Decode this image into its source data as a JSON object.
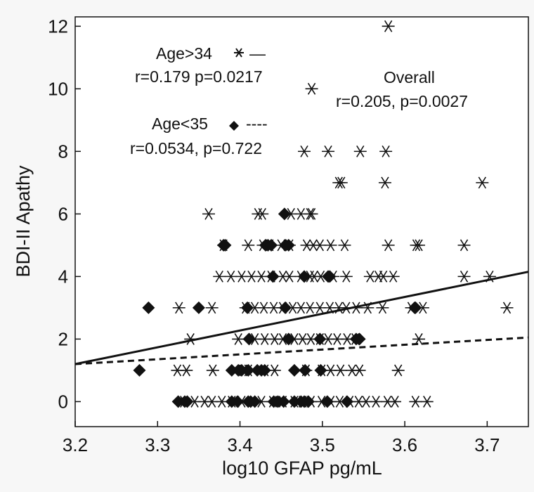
{
  "chart_data": {
    "type": "scatter",
    "title": "",
    "xlabel": "log10 GFAP pg/mL",
    "ylabel": "BDI-II Apathy",
    "xlim": [
      3.2,
      3.75
    ],
    "ylim": [
      -0.8,
      12.3
    ],
    "x_ticks": [
      3.2,
      3.3,
      3.4,
      3.5,
      3.6,
      3.7
    ],
    "x_tick_labels": [
      "3.2",
      "3.3",
      "3.4",
      "3.5",
      "3.6",
      "3.7"
    ],
    "y_ticks": [
      0,
      2,
      4,
      6,
      8,
      10,
      12
    ],
    "y_tick_labels": [
      "0",
      "2",
      "4",
      "6",
      "8",
      "10",
      "12"
    ],
    "grid": false,
    "annotations": {
      "older_group": "Age>34",
      "older_stats": "r=0.179 p=0.0217",
      "younger_group": "Age<35",
      "younger_stats": "r=0.0534, p=0.722",
      "overall_label": "Overall",
      "overall_stats": "r=0.205, p=0.0027",
      "older_line_sample": "—",
      "younger_line_sample": "----"
    },
    "series": [
      {
        "name": "Age>34",
        "marker": "asterisk",
        "color": "#111111",
        "points": [
          [
            3.58,
            12
          ],
          [
            3.487,
            10
          ],
          [
            3.478,
            8
          ],
          [
            3.507,
            8
          ],
          [
            3.546,
            8
          ],
          [
            3.577,
            8
          ],
          [
            3.52,
            7
          ],
          [
            3.523,
            7
          ],
          [
            3.576,
            7
          ],
          [
            3.694,
            7
          ],
          [
            3.362,
            6
          ],
          [
            3.422,
            6
          ],
          [
            3.427,
            6
          ],
          [
            3.462,
            6
          ],
          [
            3.474,
            6
          ],
          [
            3.485,
            6
          ],
          [
            3.487,
            6
          ],
          [
            3.38,
            5
          ],
          [
            3.41,
            5
          ],
          [
            3.428,
            5
          ],
          [
            3.436,
            5
          ],
          [
            3.45,
            5
          ],
          [
            3.46,
            5
          ],
          [
            3.481,
            5
          ],
          [
            3.489,
            5
          ],
          [
            3.497,
            5
          ],
          [
            3.51,
            5
          ],
          [
            3.527,
            5
          ],
          [
            3.58,
            5
          ],
          [
            3.614,
            5
          ],
          [
            3.617,
            5
          ],
          [
            3.672,
            5
          ],
          [
            3.375,
            4
          ],
          [
            3.389,
            4
          ],
          [
            3.402,
            4
          ],
          [
            3.414,
            4
          ],
          [
            3.426,
            4
          ],
          [
            3.438,
            4
          ],
          [
            3.452,
            4
          ],
          [
            3.46,
            4
          ],
          [
            3.474,
            4
          ],
          [
            3.485,
            4
          ],
          [
            3.49,
            4
          ],
          [
            3.498,
            4
          ],
          [
            3.513,
            4
          ],
          [
            3.529,
            4
          ],
          [
            3.558,
            4
          ],
          [
            3.568,
            4
          ],
          [
            3.574,
            4
          ],
          [
            3.586,
            4
          ],
          [
            3.672,
            4
          ],
          [
            3.703,
            4
          ],
          [
            3.326,
            3
          ],
          [
            3.366,
            3
          ],
          [
            3.407,
            3
          ],
          [
            3.418,
            3
          ],
          [
            3.429,
            3
          ],
          [
            3.441,
            3
          ],
          [
            3.452,
            3
          ],
          [
            3.464,
            3
          ],
          [
            3.474,
            3
          ],
          [
            3.485,
            3
          ],
          [
            3.497,
            3
          ],
          [
            3.509,
            3
          ],
          [
            3.52,
            3
          ],
          [
            3.529,
            3
          ],
          [
            3.541,
            3
          ],
          [
            3.555,
            3
          ],
          [
            3.573,
            3
          ],
          [
            3.608,
            3
          ],
          [
            3.622,
            3
          ],
          [
            3.724,
            3
          ],
          [
            3.34,
            2
          ],
          [
            3.398,
            2
          ],
          [
            3.418,
            2
          ],
          [
            3.43,
            2
          ],
          [
            3.442,
            2
          ],
          [
            3.452,
            2
          ],
          [
            3.466,
            2
          ],
          [
            3.476,
            2
          ],
          [
            3.486,
            2
          ],
          [
            3.497,
            2
          ],
          [
            3.507,
            2
          ],
          [
            3.518,
            2
          ],
          [
            3.53,
            2
          ],
          [
            3.54,
            2
          ],
          [
            3.617,
            2
          ],
          [
            3.324,
            1
          ],
          [
            3.335,
            1
          ],
          [
            3.367,
            1
          ],
          [
            3.404,
            1
          ],
          [
            3.41,
            1
          ],
          [
            3.43,
            1
          ],
          [
            3.442,
            1
          ],
          [
            3.48,
            1
          ],
          [
            3.499,
            1
          ],
          [
            3.51,
            1
          ],
          [
            3.522,
            1
          ],
          [
            3.536,
            1
          ],
          [
            3.545,
            1
          ],
          [
            3.592,
            1
          ],
          [
            3.332,
            0
          ],
          [
            3.345,
            0
          ],
          [
            3.357,
            0
          ],
          [
            3.366,
            0
          ],
          [
            3.378,
            0
          ],
          [
            3.39,
            0
          ],
          [
            3.402,
            0
          ],
          [
            3.414,
            0
          ],
          [
            3.426,
            0
          ],
          [
            3.44,
            0
          ],
          [
            3.452,
            0
          ],
          [
            3.466,
            0
          ],
          [
            3.476,
            0
          ],
          [
            3.486,
            0
          ],
          [
            3.499,
            0
          ],
          [
            3.51,
            0
          ],
          [
            3.521,
            0
          ],
          [
            3.533,
            0
          ],
          [
            3.544,
            0
          ],
          [
            3.553,
            0
          ],
          [
            3.565,
            0
          ],
          [
            3.579,
            0
          ],
          [
            3.588,
            0
          ],
          [
            3.613,
            0
          ],
          [
            3.627,
            0
          ]
        ]
      },
      {
        "name": "Age<35",
        "marker": "diamond",
        "color": "#111111",
        "points": [
          [
            3.454,
            6
          ],
          [
            3.38,
            5
          ],
          [
            3.382,
            5
          ],
          [
            3.431,
            5
          ],
          [
            3.434,
            5
          ],
          [
            3.438,
            5
          ],
          [
            3.455,
            5
          ],
          [
            3.459,
            5
          ],
          [
            3.44,
            4
          ],
          [
            3.478,
            4
          ],
          [
            3.507,
            4
          ],
          [
            3.509,
            4
          ],
          [
            3.289,
            3
          ],
          [
            3.35,
            3
          ],
          [
            3.409,
            3
          ],
          [
            3.455,
            3
          ],
          [
            3.612,
            3
          ],
          [
            3.613,
            3
          ],
          [
            3.411,
            2
          ],
          [
            3.459,
            2
          ],
          [
            3.497,
            2
          ],
          [
            3.541,
            2
          ],
          [
            3.545,
            2
          ],
          [
            3.278,
            1
          ],
          [
            3.39,
            1
          ],
          [
            3.398,
            1
          ],
          [
            3.402,
            1
          ],
          [
            3.41,
            1
          ],
          [
            3.421,
            1
          ],
          [
            3.426,
            1
          ],
          [
            3.43,
            1
          ],
          [
            3.466,
            1
          ],
          [
            3.479,
            1
          ],
          [
            3.498,
            1
          ],
          [
            3.325,
            0
          ],
          [
            3.333,
            0
          ],
          [
            3.336,
            0
          ],
          [
            3.39,
            0
          ],
          [
            3.397,
            0
          ],
          [
            3.41,
            0
          ],
          [
            3.413,
            0
          ],
          [
            3.418,
            0
          ],
          [
            3.441,
            0
          ],
          [
            3.446,
            0
          ],
          [
            3.453,
            0
          ],
          [
            3.466,
            0
          ],
          [
            3.474,
            0
          ],
          [
            3.478,
            0
          ],
          [
            3.483,
            0
          ],
          [
            3.506,
            0
          ],
          [
            3.53,
            0
          ]
        ]
      }
    ],
    "lines": [
      {
        "label": "Age>34 fit",
        "style": "solid",
        "x": [
          3.2,
          3.75
        ],
        "y": [
          1.2,
          4.15
        ]
      },
      {
        "label": "Age<35 fit",
        "style": "dashed",
        "x": [
          3.2,
          3.75
        ],
        "y": [
          1.2,
          2.05
        ]
      }
    ]
  }
}
